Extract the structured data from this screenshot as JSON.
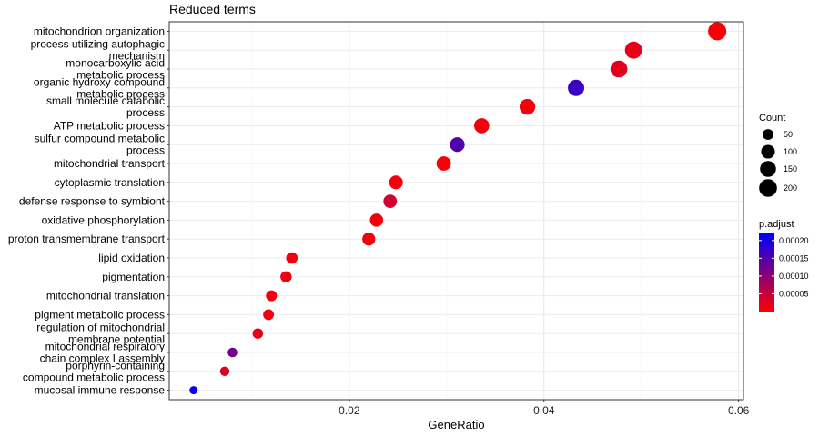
{
  "chart_data": {
    "type": "scatter",
    "title": "Reduced terms",
    "xlabel": "GeneRatio",
    "ylabel": "",
    "xlim": [
      0.0015,
      0.0605
    ],
    "xticks": [
      0.02,
      0.04,
      0.06
    ],
    "xtick_labels": [
      "0.02",
      "0.04",
      "0.06"
    ],
    "grid": true,
    "legend_position": "right",
    "size_legend": {
      "title": "Count",
      "values": [
        50,
        100,
        150,
        200
      ],
      "labels": [
        "50",
        "100",
        "150",
        "200"
      ]
    },
    "color_legend": {
      "title": "p.adjust",
      "range": [
        0,
        0.00022
      ],
      "ticks": [
        5e-05,
        0.0001,
        0.00015,
        0.0002
      ],
      "tick_labels": [
        "0.00005",
        "0.00010",
        "0.00015",
        "0.00020"
      ],
      "low_color": "#ff0000",
      "high_color": "#0000ff"
    },
    "points": [
      {
        "term": "mitochondrion organization",
        "gene_ratio": 0.0578,
        "count": 210,
        "p_adjust": 5e-06
      },
      {
        "term": "process utilizing autophagic\nmechanism",
        "gene_ratio": 0.0492,
        "count": 180,
        "p_adjust": 2e-05
      },
      {
        "term": "monocarboxylic acid\nmetabolic process",
        "gene_ratio": 0.0477,
        "count": 175,
        "p_adjust": 2.5e-05
      },
      {
        "term": "organic hydroxy compound\nmetabolic process",
        "gene_ratio": 0.0433,
        "count": 160,
        "p_adjust": 0.00017
      },
      {
        "term": "small molecule catabolic\nprocess",
        "gene_ratio": 0.0383,
        "count": 145,
        "p_adjust": 1e-05
      },
      {
        "term": "ATP metabolic process",
        "gene_ratio": 0.0336,
        "count": 130,
        "p_adjust": 1e-05
      },
      {
        "term": "sulfur compound metabolic\nprocess",
        "gene_ratio": 0.0311,
        "count": 120,
        "p_adjust": 0.00015
      },
      {
        "term": "mitochondrial transport",
        "gene_ratio": 0.0297,
        "count": 115,
        "p_adjust": 8e-06
      },
      {
        "term": "cytoplasmic translation",
        "gene_ratio": 0.0248,
        "count": 100,
        "p_adjust": 1e-05
      },
      {
        "term": "defense response to symbiont",
        "gene_ratio": 0.0242,
        "count": 95,
        "p_adjust": 4e-05
      },
      {
        "term": "oxidative phosphorylation",
        "gene_ratio": 0.0228,
        "count": 90,
        "p_adjust": 1e-05
      },
      {
        "term": "proton transmembrane transport",
        "gene_ratio": 0.022,
        "count": 85,
        "p_adjust": 1e-05
      },
      {
        "term": "lipid oxidation",
        "gene_ratio": 0.0141,
        "count": 60,
        "p_adjust": 1e-05
      },
      {
        "term": "pigmentation",
        "gene_ratio": 0.0135,
        "count": 57,
        "p_adjust": 1.5e-05
      },
      {
        "term": "mitochondrial translation",
        "gene_ratio": 0.012,
        "count": 52,
        "p_adjust": 1e-05
      },
      {
        "term": "pigment metabolic process",
        "gene_ratio": 0.0117,
        "count": 50,
        "p_adjust": 1e-05
      },
      {
        "term": "regulation of mitochondrial\nmembrane potential",
        "gene_ratio": 0.0106,
        "count": 45,
        "p_adjust": 2e-05
      },
      {
        "term": "mitochondrial respiratory\nchain complex I assembly",
        "gene_ratio": 0.008,
        "count": 35,
        "p_adjust": 0.00012
      },
      {
        "term": "porphyrin-containing\ncompound metabolic process",
        "gene_ratio": 0.0072,
        "count": 32,
        "p_adjust": 3e-05
      },
      {
        "term": "mucosal immune response",
        "gene_ratio": 0.004,
        "count": 20,
        "p_adjust": 0.00021
      }
    ]
  }
}
